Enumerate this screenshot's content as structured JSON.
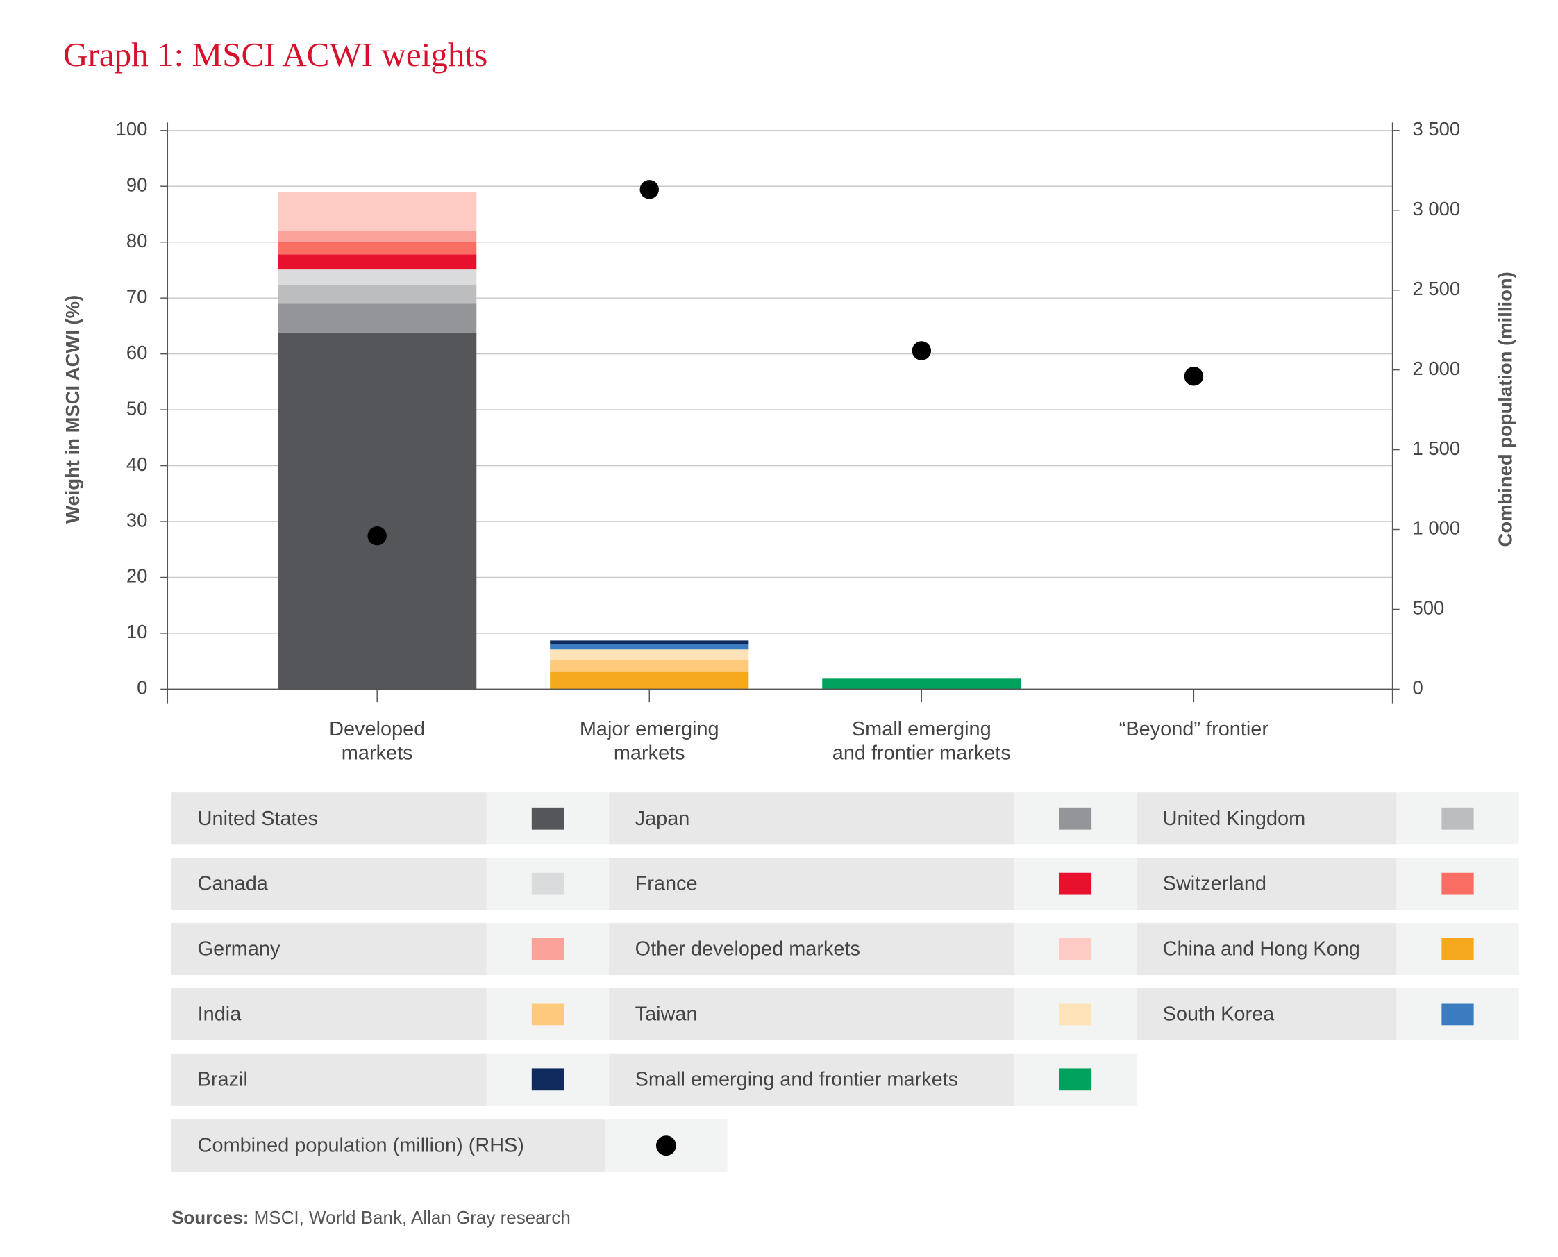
{
  "chart_data": {
    "type": "bar",
    "stacked": true,
    "title": "Graph 1: MSCI ACWI weights",
    "y_label": "Weight in MSCI ACWI (%)",
    "y2_label": "Combined population (million)",
    "categories": [
      "Developed\nmarkets",
      "Major emerging\nmarkets",
      "Small emerging\nand frontier markets",
      "“Beyond” frontier"
    ],
    "ylim": [
      0,
      100
    ],
    "yticks": [
      0,
      10,
      20,
      30,
      40,
      50,
      60,
      70,
      80,
      90,
      100
    ],
    "y2lim": [
      0,
      3500
    ],
    "y2ticks": [
      0,
      500,
      {
        "value": 1000,
        "label": "1 000"
      },
      {
        "value": 1500,
        "label": "1 500"
      },
      {
        "value": 2000,
        "label": "2 000"
      },
      {
        "value": 2500,
        "label": "2 500"
      },
      {
        "value": 3000,
        "label": "3 000"
      },
      {
        "value": 3500,
        "label": "3 500"
      }
    ],
    "grid": true,
    "series": [
      {
        "name": "United States",
        "color": "#55565a",
        "values": [
          63.8,
          null,
          null,
          null
        ]
      },
      {
        "name": "Japan",
        "color": "#949599",
        "values": [
          5.2,
          null,
          null,
          null
        ]
      },
      {
        "name": "United Kingdom",
        "color": "#bcbdbf",
        "values": [
          3.3,
          null,
          null,
          null
        ]
      },
      {
        "name": "Canada",
        "color": "#dadbdc",
        "values": [
          2.8,
          null,
          null,
          null
        ]
      },
      {
        "name": "France",
        "color": "#e8112d",
        "values": [
          2.7,
          null,
          null,
          null
        ]
      },
      {
        "name": "Switzerland",
        "color": "#f96d63",
        "values": [
          2.2,
          null,
          null,
          null
        ]
      },
      {
        "name": "Germany",
        "color": "#fba39a",
        "values": [
          2.0,
          null,
          null,
          null
        ]
      },
      {
        "name": "Other developed markets",
        "color": "#ffcbc4",
        "values": [
          7.0,
          null,
          null,
          null
        ]
      },
      {
        "name": "China and Hong Kong",
        "color": "#f6a81c",
        "values": [
          null,
          3.2,
          null,
          null
        ]
      },
      {
        "name": "India",
        "color": "#fdc97a",
        "values": [
          null,
          2.0,
          null,
          null
        ]
      },
      {
        "name": "Taiwan",
        "color": "#fee3b9",
        "values": [
          null,
          1.9,
          null,
          null
        ]
      },
      {
        "name": "South Korea",
        "color": "#3b7bbf",
        "values": [
          null,
          1.0,
          null,
          null
        ]
      },
      {
        "name": "Brazil",
        "color": "#0f2b5e",
        "values": [
          null,
          0.6,
          null,
          null
        ]
      },
      {
        "name": "Small emerging and frontier markets",
        "color": "#00a15c",
        "values": [
          null,
          null,
          2.0,
          null
        ]
      },
      {
        "name": "Combined population (million) (RHS)",
        "color": "#000000",
        "type": "scatter",
        "axis": "y2",
        "values": [
          960,
          3130,
          2120,
          1960
        ]
      }
    ],
    "source": {
      "label": "Sources:",
      "text": "MSCI, World Bank, Allan Gray research"
    }
  }
}
